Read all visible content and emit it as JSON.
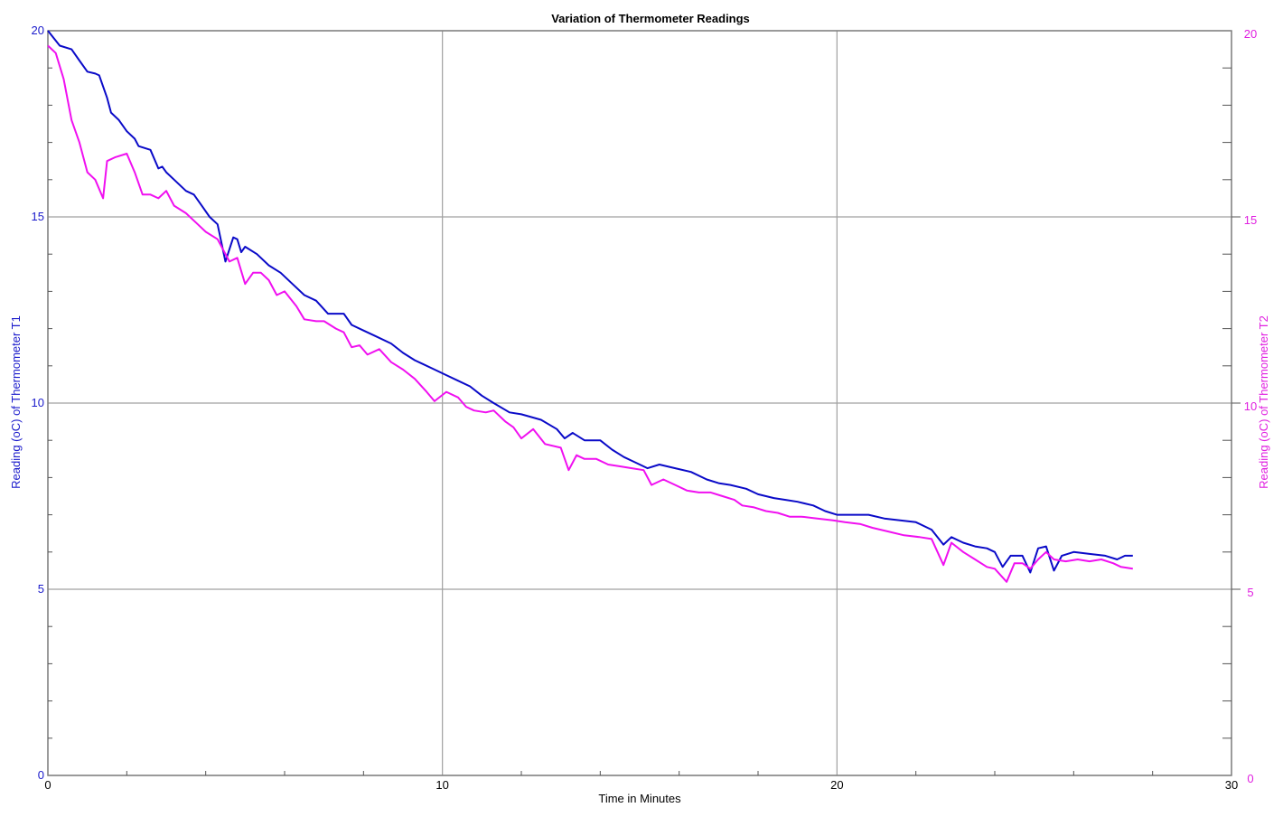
{
  "chart_data": {
    "type": "line",
    "title": "Variation of Thermometer Readings",
    "xlabel": "Time in Minutes",
    "ylabel_left": "Reading (oC) of Thermometer T1",
    "ylabel_right": "Reading (oC) of Thermometer T2",
    "xlim": [
      0,
      30
    ],
    "ylim_left": [
      0,
      20
    ],
    "ylim_right": [
      0,
      20
    ],
    "x_ticks": [
      "0",
      "10",
      "20",
      "30"
    ],
    "y_ticks_left": [
      "0",
      "5",
      "10",
      "15",
      "20"
    ],
    "y_ticks_right": [
      "0",
      "5",
      "10",
      "15",
      "20"
    ],
    "grid": true,
    "colors": {
      "left_axis": "#1a1acb",
      "right_axis": "#e020e0",
      "grid": "#a0a0a0",
      "frame": "#808080"
    },
    "series": [
      {
        "axis": "left",
        "color": "#0a0ac8",
        "points": [
          [
            0.0,
            20.0
          ],
          [
            0.3,
            19.6
          ],
          [
            0.6,
            19.5
          ],
          [
            0.8,
            19.2
          ],
          [
            1.0,
            18.9
          ],
          [
            1.2,
            18.85
          ],
          [
            1.3,
            18.8
          ],
          [
            1.5,
            18.2
          ],
          [
            1.6,
            17.8
          ],
          [
            1.8,
            17.6
          ],
          [
            2.0,
            17.3
          ],
          [
            2.2,
            17.1
          ],
          [
            2.3,
            16.9
          ],
          [
            2.6,
            16.8
          ],
          [
            2.8,
            16.3
          ],
          [
            2.9,
            16.35
          ],
          [
            3.0,
            16.2
          ],
          [
            3.2,
            16.0
          ],
          [
            3.5,
            15.7
          ],
          [
            3.7,
            15.6
          ],
          [
            3.9,
            15.3
          ],
          [
            4.1,
            15.0
          ],
          [
            4.3,
            14.8
          ],
          [
            4.5,
            13.8
          ],
          [
            4.7,
            14.45
          ],
          [
            4.8,
            14.4
          ],
          [
            4.9,
            14.05
          ],
          [
            5.0,
            14.2
          ],
          [
            5.3,
            14.0
          ],
          [
            5.6,
            13.7
          ],
          [
            5.9,
            13.5
          ],
          [
            6.2,
            13.2
          ],
          [
            6.5,
            12.9
          ],
          [
            6.8,
            12.75
          ],
          [
            7.1,
            12.4
          ],
          [
            7.5,
            12.4
          ],
          [
            7.7,
            12.1
          ],
          [
            8.0,
            11.95
          ],
          [
            8.3,
            11.8
          ],
          [
            8.7,
            11.6
          ],
          [
            9.0,
            11.35
          ],
          [
            9.3,
            11.15
          ],
          [
            9.5,
            11.05
          ],
          [
            9.8,
            10.9
          ],
          [
            10.1,
            10.75
          ],
          [
            10.4,
            10.6
          ],
          [
            10.7,
            10.45
          ],
          [
            11.0,
            10.2
          ],
          [
            11.3,
            10.0
          ],
          [
            11.7,
            9.75
          ],
          [
            12.0,
            9.7
          ],
          [
            12.5,
            9.55
          ],
          [
            12.9,
            9.3
          ],
          [
            13.1,
            9.05
          ],
          [
            13.3,
            9.2
          ],
          [
            13.6,
            9.0
          ],
          [
            14.0,
            9.0
          ],
          [
            14.3,
            8.75
          ],
          [
            14.6,
            8.55
          ],
          [
            14.9,
            8.4
          ],
          [
            15.2,
            8.25
          ],
          [
            15.5,
            8.35
          ],
          [
            15.9,
            8.25
          ],
          [
            16.3,
            8.15
          ],
          [
            16.7,
            7.95
          ],
          [
            17.0,
            7.85
          ],
          [
            17.3,
            7.8
          ],
          [
            17.7,
            7.7
          ],
          [
            18.0,
            7.55
          ],
          [
            18.4,
            7.45
          ],
          [
            18.7,
            7.4
          ],
          [
            19.0,
            7.35
          ],
          [
            19.4,
            7.25
          ],
          [
            19.7,
            7.1
          ],
          [
            20.0,
            7.0
          ],
          [
            20.4,
            7.0
          ],
          [
            20.8,
            7.0
          ],
          [
            21.2,
            6.9
          ],
          [
            21.6,
            6.85
          ],
          [
            22.0,
            6.8
          ],
          [
            22.4,
            6.6
          ],
          [
            22.7,
            6.2
          ],
          [
            22.9,
            6.4
          ],
          [
            23.2,
            6.25
          ],
          [
            23.5,
            6.15
          ],
          [
            23.8,
            6.1
          ],
          [
            24.0,
            6.0
          ],
          [
            24.2,
            5.6
          ],
          [
            24.4,
            5.9
          ],
          [
            24.7,
            5.9
          ],
          [
            24.9,
            5.45
          ],
          [
            25.1,
            6.1
          ],
          [
            25.3,
            6.15
          ],
          [
            25.5,
            5.5
          ],
          [
            25.7,
            5.9
          ],
          [
            26.0,
            6.0
          ],
          [
            26.4,
            5.95
          ],
          [
            26.8,
            5.9
          ],
          [
            27.1,
            5.8
          ],
          [
            27.3,
            5.9
          ],
          [
            27.5,
            5.9
          ]
        ]
      },
      {
        "axis": "right",
        "color": "#f010f0",
        "points": [
          [
            0.0,
            19.6
          ],
          [
            0.2,
            19.4
          ],
          [
            0.4,
            18.7
          ],
          [
            0.6,
            17.6
          ],
          [
            0.8,
            17.0
          ],
          [
            1.0,
            16.2
          ],
          [
            1.2,
            16.0
          ],
          [
            1.4,
            15.5
          ],
          [
            1.5,
            16.5
          ],
          [
            1.7,
            16.6
          ],
          [
            2.0,
            16.7
          ],
          [
            2.2,
            16.2
          ],
          [
            2.4,
            15.6
          ],
          [
            2.6,
            15.6
          ],
          [
            2.8,
            15.5
          ],
          [
            3.0,
            15.7
          ],
          [
            3.2,
            15.3
          ],
          [
            3.5,
            15.1
          ],
          [
            3.8,
            14.8
          ],
          [
            4.0,
            14.6
          ],
          [
            4.3,
            14.4
          ],
          [
            4.6,
            13.8
          ],
          [
            4.8,
            13.9
          ],
          [
            5.0,
            13.2
          ],
          [
            5.2,
            13.5
          ],
          [
            5.4,
            13.5
          ],
          [
            5.6,
            13.3
          ],
          [
            5.8,
            12.9
          ],
          [
            6.0,
            13.0
          ],
          [
            6.3,
            12.6
          ],
          [
            6.5,
            12.25
          ],
          [
            6.8,
            12.2
          ],
          [
            7.0,
            12.2
          ],
          [
            7.3,
            12.0
          ],
          [
            7.5,
            11.9
          ],
          [
            7.7,
            11.5
          ],
          [
            7.9,
            11.55
          ],
          [
            8.1,
            11.3
          ],
          [
            8.4,
            11.45
          ],
          [
            8.7,
            11.1
          ],
          [
            9.0,
            10.9
          ],
          [
            9.3,
            10.65
          ],
          [
            9.6,
            10.3
          ],
          [
            9.8,
            10.05
          ],
          [
            10.1,
            10.3
          ],
          [
            10.4,
            10.15
          ],
          [
            10.6,
            9.9
          ],
          [
            10.8,
            9.8
          ],
          [
            11.1,
            9.75
          ],
          [
            11.3,
            9.8
          ],
          [
            11.6,
            9.5
          ],
          [
            11.8,
            9.35
          ],
          [
            12.0,
            9.05
          ],
          [
            12.3,
            9.3
          ],
          [
            12.6,
            8.9
          ],
          [
            13.0,
            8.8
          ],
          [
            13.2,
            8.2
          ],
          [
            13.4,
            8.6
          ],
          [
            13.6,
            8.5
          ],
          [
            13.9,
            8.5
          ],
          [
            14.2,
            8.35
          ],
          [
            14.5,
            8.3
          ],
          [
            14.8,
            8.25
          ],
          [
            15.1,
            8.2
          ],
          [
            15.3,
            7.8
          ],
          [
            15.6,
            7.95
          ],
          [
            15.9,
            7.8
          ],
          [
            16.2,
            7.65
          ],
          [
            16.5,
            7.6
          ],
          [
            16.8,
            7.6
          ],
          [
            17.1,
            7.5
          ],
          [
            17.4,
            7.4
          ],
          [
            17.6,
            7.25
          ],
          [
            17.9,
            7.2
          ],
          [
            18.2,
            7.1
          ],
          [
            18.5,
            7.05
          ],
          [
            18.8,
            6.95
          ],
          [
            19.1,
            6.95
          ],
          [
            19.5,
            6.9
          ],
          [
            19.9,
            6.85
          ],
          [
            20.2,
            6.8
          ],
          [
            20.6,
            6.75
          ],
          [
            20.9,
            6.65
          ],
          [
            21.3,
            6.55
          ],
          [
            21.7,
            6.45
          ],
          [
            22.1,
            6.4
          ],
          [
            22.4,
            6.35
          ],
          [
            22.7,
            5.65
          ],
          [
            22.9,
            6.25
          ],
          [
            23.2,
            6.0
          ],
          [
            23.5,
            5.8
          ],
          [
            23.8,
            5.6
          ],
          [
            24.0,
            5.55
          ],
          [
            24.3,
            5.2
          ],
          [
            24.5,
            5.7
          ],
          [
            24.7,
            5.7
          ],
          [
            24.9,
            5.55
          ],
          [
            25.1,
            5.8
          ],
          [
            25.3,
            6.0
          ],
          [
            25.5,
            5.8
          ],
          [
            25.8,
            5.75
          ],
          [
            26.1,
            5.8
          ],
          [
            26.4,
            5.75
          ],
          [
            26.7,
            5.8
          ],
          [
            27.0,
            5.7
          ],
          [
            27.2,
            5.6
          ],
          [
            27.5,
            5.55
          ]
        ]
      }
    ]
  }
}
